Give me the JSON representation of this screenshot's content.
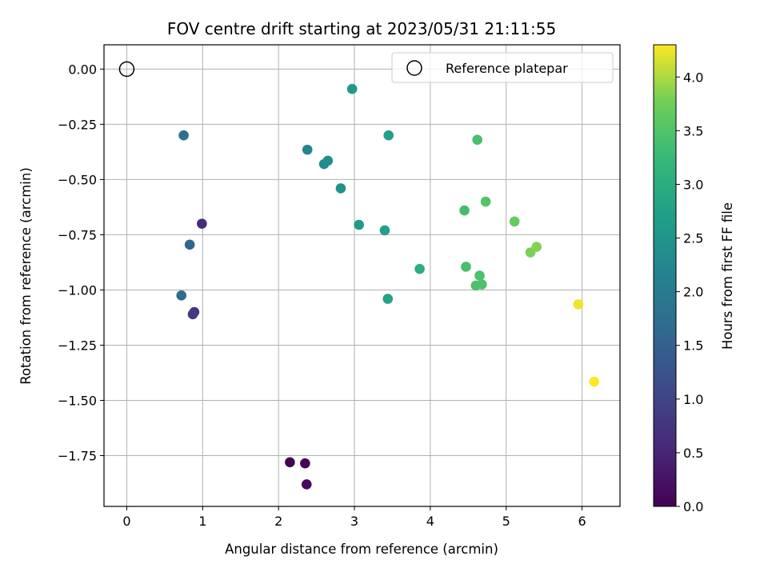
{
  "chart_data": {
    "type": "scatter",
    "title": "FOV centre drift starting at 2023/05/31 21:11:55",
    "xlabel": "Angular distance from reference (arcmin)",
    "ylabel": "Rotation from reference (arcmin)",
    "xlim": [
      -0.3,
      6.5
    ],
    "ylim": [
      -1.98,
      0.11
    ],
    "xticks": [
      0,
      1,
      2,
      3,
      4,
      5,
      6
    ],
    "xtick_labels": [
      "0",
      "1",
      "2",
      "3",
      "4",
      "5",
      "6"
    ],
    "yticks": [
      0.0,
      -0.25,
      -0.5,
      -0.75,
      -1.0,
      -1.25,
      -1.5,
      -1.75
    ],
    "ytick_labels": [
      "0.00",
      "−0.25",
      "−0.50",
      "−0.75",
      "−1.00",
      "−1.25",
      "−1.50",
      "−1.75"
    ],
    "grid": true,
    "colormap": "viridis",
    "legend": {
      "position": "top-right",
      "entries": [
        {
          "label": "Reference platepar",
          "marker": "open-circle",
          "color": "#000000"
        }
      ]
    },
    "reference_point": {
      "x": 0.0,
      "y": 0.0
    },
    "colorbar": {
      "label": "Hours from first FF file",
      "range": [
        0.0,
        4.3
      ],
      "ticks": [
        0.0,
        0.5,
        1.0,
        1.5,
        2.0,
        2.5,
        3.0,
        3.5,
        4.0
      ],
      "tick_labels": [
        "0.0",
        "0.5",
        "1.0",
        "1.5",
        "2.0",
        "2.5",
        "3.0",
        "3.5",
        "4.0"
      ]
    },
    "points": [
      {
        "x": 2.15,
        "y": -1.78,
        "hours": 0.0
      },
      {
        "x": 2.35,
        "y": -1.785,
        "hours": 0.05
      },
      {
        "x": 2.37,
        "y": -1.88,
        "hours": 0.1
      },
      {
        "x": 0.99,
        "y": -0.7,
        "hours": 0.6
      },
      {
        "x": 0.89,
        "y": -1.1,
        "hours": 0.75
      },
      {
        "x": 0.87,
        "y": -1.11,
        "hours": 0.85
      },
      {
        "x": 0.83,
        "y": -0.795,
        "hours": 1.6
      },
      {
        "x": 0.72,
        "y": -1.025,
        "hours": 1.7
      },
      {
        "x": 0.75,
        "y": -0.3,
        "hours": 1.75
      },
      {
        "x": 2.38,
        "y": -0.365,
        "hours": 2.2
      },
      {
        "x": 2.6,
        "y": -0.43,
        "hours": 2.3
      },
      {
        "x": 2.65,
        "y": -0.415,
        "hours": 2.35
      },
      {
        "x": 2.82,
        "y": -0.54,
        "hours": 2.45
      },
      {
        "x": 2.97,
        "y": -0.09,
        "hours": 2.6
      },
      {
        "x": 3.06,
        "y": -0.705,
        "hours": 2.65
      },
      {
        "x": 3.4,
        "y": -0.73,
        "hours": 2.7
      },
      {
        "x": 3.45,
        "y": -0.3,
        "hours": 2.75
      },
      {
        "x": 3.44,
        "y": -1.04,
        "hours": 2.8
      },
      {
        "x": 3.86,
        "y": -0.905,
        "hours": 3.0
      },
      {
        "x": 4.45,
        "y": -0.64,
        "hours": 3.35
      },
      {
        "x": 4.47,
        "y": -0.895,
        "hours": 3.4
      },
      {
        "x": 4.62,
        "y": -0.32,
        "hours": 3.4
      },
      {
        "x": 4.65,
        "y": -0.935,
        "hours": 3.45
      },
      {
        "x": 4.6,
        "y": -0.98,
        "hours": 3.45
      },
      {
        "x": 4.68,
        "y": -0.975,
        "hours": 3.45
      },
      {
        "x": 4.73,
        "y": -0.6,
        "hours": 3.5
      },
      {
        "x": 5.11,
        "y": -0.69,
        "hours": 3.7
      },
      {
        "x": 5.32,
        "y": -0.83,
        "hours": 3.8
      },
      {
        "x": 5.4,
        "y": -0.805,
        "hours": 3.85
      },
      {
        "x": 5.95,
        "y": -1.065,
        "hours": 4.25
      },
      {
        "x": 6.16,
        "y": -1.415,
        "hours": 4.3
      }
    ]
  }
}
